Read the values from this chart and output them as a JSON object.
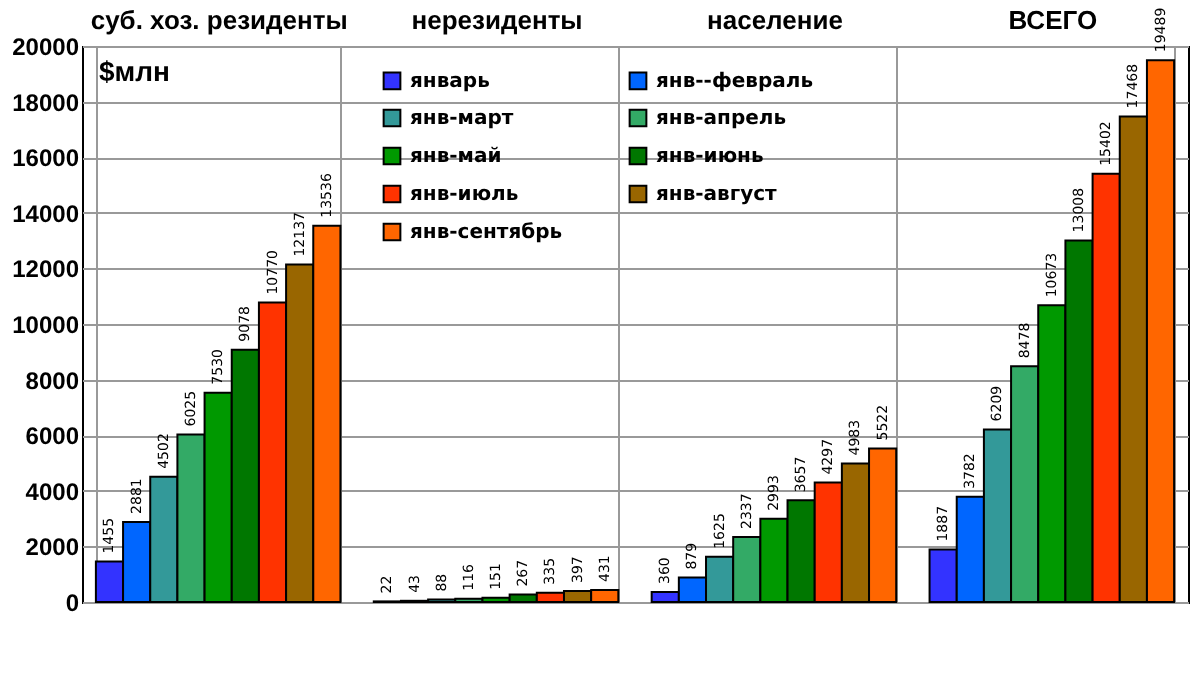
{
  "chart_data": {
    "type": "bar",
    "ylabel": "$млн",
    "categories": [
      "суб. хоз. резиденты",
      "нерезиденты",
      "население",
      "ВСЕГО"
    ],
    "series": [
      {
        "name": "январь",
        "color": "#3333ff",
        "values": [
          1455,
          22,
          360,
          1887
        ]
      },
      {
        "name": "янв--февраль",
        "color": "#0066ff",
        "values": [
          2881,
          43,
          879,
          3782
        ]
      },
      {
        "name": "янв-март",
        "color": "#339999",
        "values": [
          4502,
          88,
          1625,
          6209
        ]
      },
      {
        "name": "янв-апрель",
        "color": "#33aa66",
        "values": [
          6025,
          116,
          2337,
          8478
        ]
      },
      {
        "name": "янв-май",
        "color": "#009900",
        "values": [
          7530,
          151,
          2993,
          10673
        ]
      },
      {
        "name": "янв-июнь",
        "color": "#007700",
        "values": [
          9078,
          267,
          3657,
          13008
        ]
      },
      {
        "name": "янв-июль",
        "color": "#ff3300",
        "values": [
          10770,
          335,
          4297,
          15402
        ]
      },
      {
        "name": "янв-август",
        "color": "#996600",
        "values": [
          12137,
          397,
          4983,
          17468
        ]
      },
      {
        "name": "янв-сентябрь",
        "color": "#ff6600",
        "values": [
          13536,
          431,
          5522,
          19489
        ]
      }
    ],
    "ylim": [
      0,
      20000
    ],
    "yticks": [
      0,
      2000,
      4000,
      6000,
      8000,
      10000,
      12000,
      14000,
      16000,
      18000,
      20000
    ],
    "grid": true,
    "legend": "top",
    "data_labels": true
  }
}
